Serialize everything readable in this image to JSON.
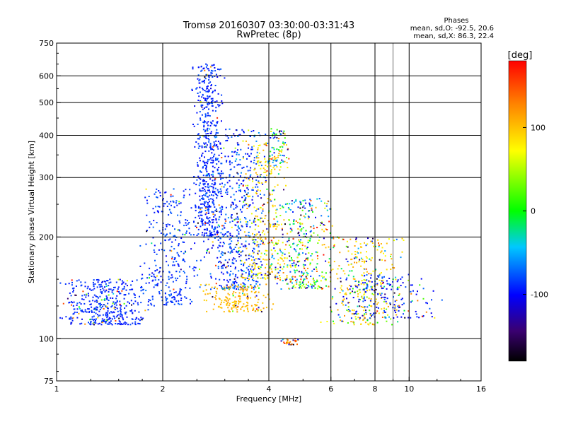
{
  "chart_data": {
    "type": "scatter",
    "title": "Tromsø 20160307 03:30:00-03:31:43",
    "subtitle": "RwPretec (8p)",
    "xlabel": "Frequency [MHz]",
    "ylabel": "Stationary phase Virtual Height [km]",
    "x_scale": "log",
    "y_scale": "log",
    "xlim": [
      1,
      16
    ],
    "ylim": [
      75,
      750
    ],
    "x_ticks": [
      1,
      2,
      4,
      6,
      8,
      10,
      16
    ],
    "y_ticks": [
      75,
      100,
      200,
      300,
      400,
      500,
      600,
      750
    ],
    "grid": true,
    "stats": {
      "heading": "Phases",
      "o_line": "mean, sd,O: -92.5, 20.6",
      "x_line": "mean, sd,X:  86.3, 22.4"
    },
    "colorbar": {
      "label": "[deg]",
      "range": [
        -180,
        180
      ],
      "ticks": [
        100,
        0,
        -100
      ]
    },
    "clusters": [
      {
        "x": [
          1.0,
          1.9
        ],
        "y": [
          110,
          150
        ],
        "n": 420,
        "phase": [
          -100,
          -80
        ],
        "alt": 0.15
      },
      {
        "x": [
          1.7,
          2.6
        ],
        "y": [
          125,
          280
        ],
        "n": 320,
        "phase": [
          -100,
          -70
        ],
        "alt": 0.1
      },
      {
        "x": [
          2.4,
          3.0
        ],
        "y": [
          200,
          650
        ],
        "n": 520,
        "phase": [
          -105,
          -75
        ],
        "alt": 0.05
      },
      {
        "x": [
          2.5,
          4.2
        ],
        "y": [
          140,
          420
        ],
        "n": 600,
        "phase": [
          -110,
          -60
        ],
        "alt": 0.2
      },
      {
        "x": [
          3.3,
          4.6
        ],
        "y": [
          150,
          380
        ],
        "n": 300,
        "phase": [
          60,
          110
        ],
        "alt": 0.3
      },
      {
        "x": [
          2.5,
          4.2
        ],
        "y": [
          120,
          145
        ],
        "n": 180,
        "phase": [
          90,
          120
        ],
        "alt": 0.1
      },
      {
        "x": [
          4.0,
          6.3
        ],
        "y": [
          140,
          260
        ],
        "n": 360,
        "phase": [
          -100,
          110
        ],
        "alt": 0.5
      },
      {
        "x": [
          5.5,
          10.0
        ],
        "y": [
          110,
          200
        ],
        "n": 320,
        "phase": [
          70,
          115
        ],
        "alt": 0.45
      },
      {
        "x": [
          6.0,
          12.5
        ],
        "y": [
          115,
          155
        ],
        "n": 180,
        "phase": [
          -110,
          -70
        ],
        "alt": 0.3
      },
      {
        "x": [
          4.3,
          5.0
        ],
        "y": [
          96,
          100
        ],
        "n": 30,
        "phase": [
          90,
          170
        ],
        "alt": 0.2
      },
      {
        "x": [
          3.9,
          4.6
        ],
        "y": [
          330,
          420
        ],
        "n": 70,
        "phase": [
          -100,
          100
        ],
        "alt": 0.5
      }
    ]
  }
}
